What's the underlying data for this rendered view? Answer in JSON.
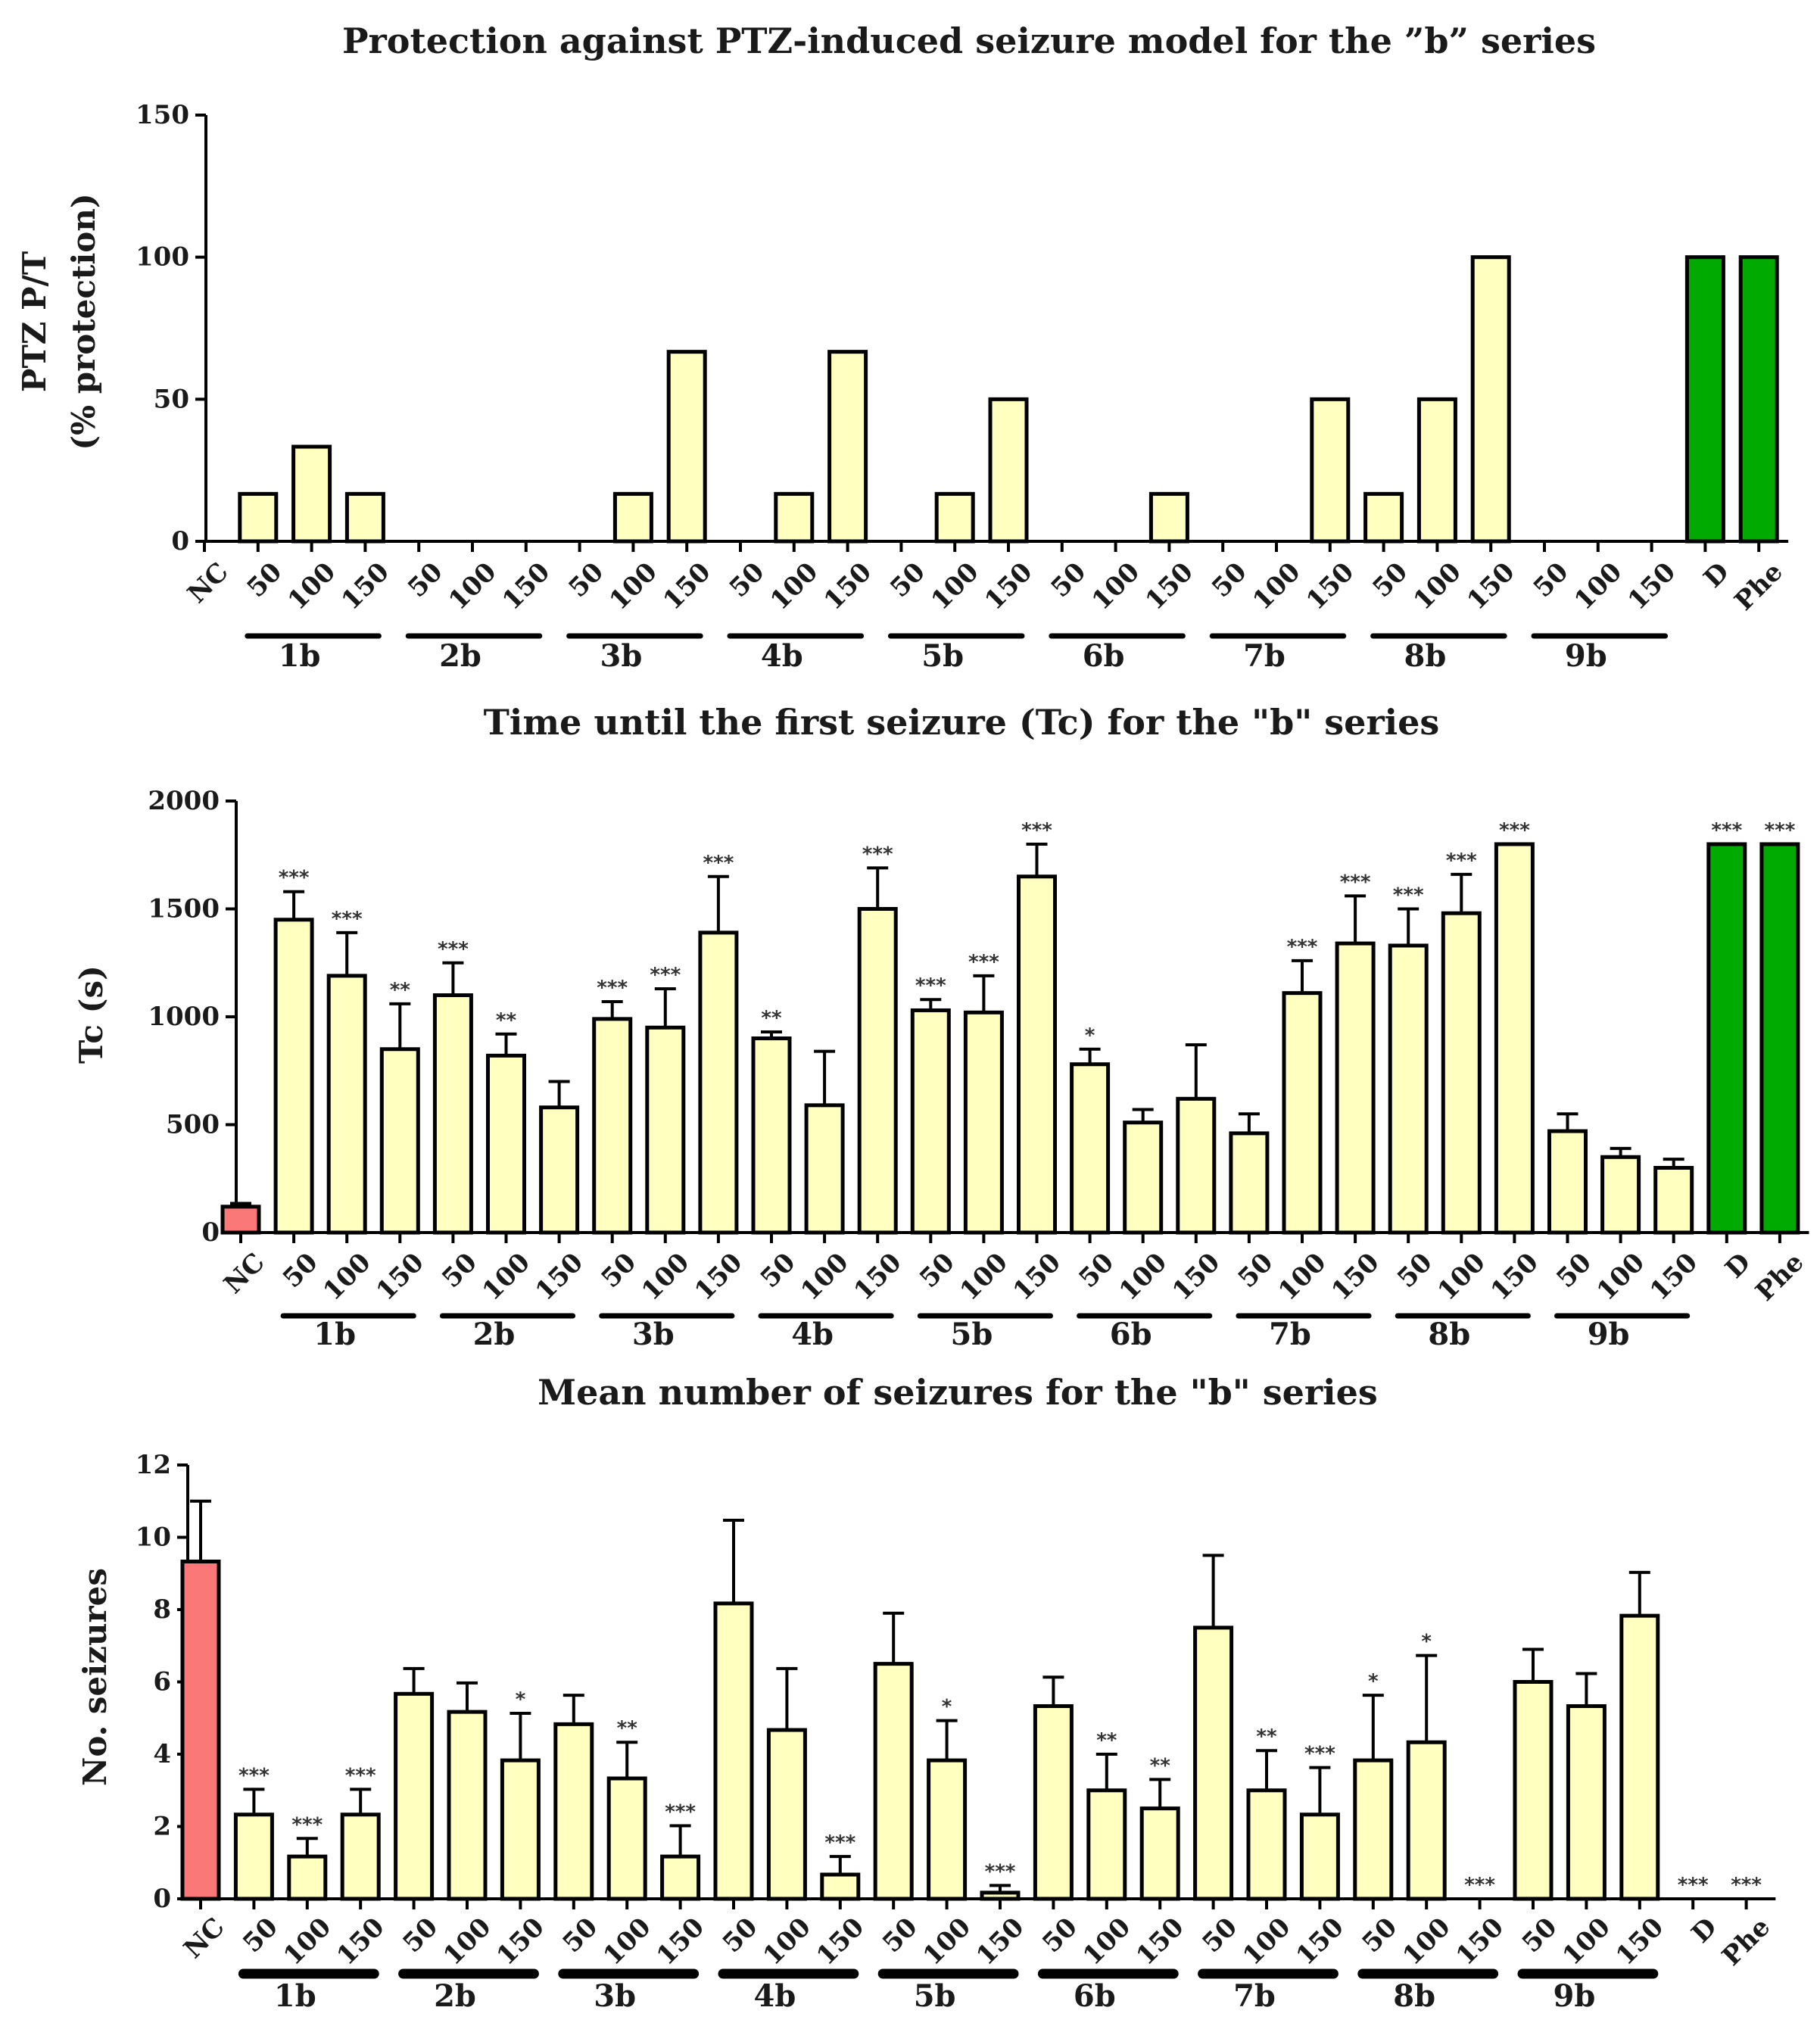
{
  "colors": {
    "yellow": "#FFFFC0",
    "green": "#00AA00",
    "red": "#FA7878",
    "stroke": "#000000"
  },
  "chart_data": [
    {
      "type": "bar",
      "title": "Protection against PTZ-induced seizure model for the ”b” series",
      "ylabel_line1": "PTZ P/T",
      "ylabel_line2": "(% protection)",
      "ylim": [
        0,
        150
      ],
      "yticks": [
        "0",
        "50",
        "100",
        "150"
      ],
      "categories": [
        "NC",
        "50",
        "100",
        "150",
        "50",
        "100",
        "150",
        "50",
        "100",
        "150",
        "50",
        "100",
        "150",
        "50",
        "100",
        "150",
        "50",
        "100",
        "150",
        "50",
        "100",
        "150",
        "50",
        "100",
        "150",
        "50",
        "100",
        "150",
        "D",
        "Phe"
      ],
      "values": [
        0,
        16.7,
        33.3,
        16.7,
        0,
        0,
        0,
        0,
        16.7,
        66.7,
        0,
        16.7,
        66.7,
        0,
        16.7,
        50,
        0,
        0,
        16.7,
        0,
        0,
        50,
        16.7,
        50,
        100,
        0,
        0,
        0,
        100,
        100
      ],
      "errors": null,
      "significance": null,
      "colors": [
        "yellow",
        "yellow",
        "yellow",
        "yellow",
        "yellow",
        "yellow",
        "yellow",
        "yellow",
        "yellow",
        "yellow",
        "yellow",
        "yellow",
        "yellow",
        "yellow",
        "yellow",
        "yellow",
        "yellow",
        "yellow",
        "yellow",
        "yellow",
        "yellow",
        "yellow",
        "yellow",
        "yellow",
        "yellow",
        "yellow",
        "yellow",
        "yellow",
        "green",
        "green"
      ],
      "groups": [
        "1b",
        "2b",
        "3b",
        "4b",
        "5b",
        "6b",
        "7b",
        "8b",
        "9b"
      ]
    },
    {
      "type": "bar",
      "title": "Time until the first seizure (Tc) for the \"b\" series",
      "ylabel_line1": "Tc (s)",
      "ylabel_line2": "",
      "ylim": [
        0,
        2000
      ],
      "yticks": [
        "0",
        "500",
        "1000",
        "1500",
        "2000"
      ],
      "categories": [
        "NC",
        "50",
        "100",
        "150",
        "50",
        "100",
        "150",
        "50",
        "100",
        "150",
        "50",
        "100",
        "150",
        "50",
        "100",
        "150",
        "50",
        "100",
        "150",
        "50",
        "100",
        "150",
        "50",
        "100",
        "150",
        "50",
        "100",
        "150",
        "D",
        "Phe"
      ],
      "values": [
        120,
        1450,
        1190,
        850,
        1100,
        820,
        580,
        990,
        950,
        1390,
        900,
        590,
        1500,
        1030,
        1020,
        1650,
        780,
        510,
        620,
        460,
        1110,
        1340,
        1330,
        1480,
        1800,
        470,
        350,
        300,
        1800,
        1800
      ],
      "errors": [
        15,
        130,
        200,
        210,
        150,
        100,
        120,
        80,
        180,
        260,
        30,
        250,
        190,
        50,
        170,
        150,
        70,
        60,
        250,
        90,
        150,
        220,
        170,
        180,
        0,
        80,
        40,
        40,
        0,
        0
      ],
      "significance": [
        "",
        "***",
        "***",
        "**",
        "***",
        "**",
        "",
        "***",
        "***",
        "***",
        "**",
        "",
        "***",
        "***",
        "***",
        "***",
        "*",
        "",
        "",
        "",
        "***",
        "***",
        "***",
        "***",
        "***",
        "",
        "",
        "",
        "***",
        "***"
      ],
      "colors": [
        "red",
        "yellow",
        "yellow",
        "yellow",
        "yellow",
        "yellow",
        "yellow",
        "yellow",
        "yellow",
        "yellow",
        "yellow",
        "yellow",
        "yellow",
        "yellow",
        "yellow",
        "yellow",
        "yellow",
        "yellow",
        "yellow",
        "yellow",
        "yellow",
        "yellow",
        "yellow",
        "yellow",
        "yellow",
        "yellow",
        "yellow",
        "yellow",
        "green",
        "green"
      ],
      "groups": [
        "1b",
        "2b",
        "3b",
        "4b",
        "5b",
        "6b",
        "7b",
        "8b",
        "9b"
      ]
    },
    {
      "type": "bar",
      "title": "Mean number of seizures for the \"b\" series",
      "ylabel_line1": "No. seizures",
      "ylabel_line2": "",
      "ylim": [
        0,
        12
      ],
      "yticks": [
        "0",
        "2",
        "4",
        "6",
        "8",
        "10",
        "12"
      ],
      "categories": [
        "NC",
        "50",
        "100",
        "150",
        "50",
        "100",
        "150",
        "50",
        "100",
        "150",
        "50",
        "100",
        "150",
        "50",
        "100",
        "150",
        "50",
        "100",
        "150",
        "50",
        "100",
        "150",
        "50",
        "100",
        "150",
        "50",
        "100",
        "150",
        "D",
        "Phe"
      ],
      "values": [
        9.33,
        2.33,
        1.17,
        2.33,
        5.67,
        5.17,
        3.83,
        4.83,
        3.33,
        1.17,
        8.17,
        4.67,
        0.67,
        6.5,
        3.83,
        0.17,
        5.33,
        3.0,
        2.5,
        7.5,
        3.0,
        2.33,
        3.83,
        4.33,
        0,
        6.0,
        5.33,
        7.83,
        0,
        0
      ],
      "errors": [
        1.67,
        0.7,
        0.5,
        0.7,
        0.7,
        0.8,
        1.3,
        0.8,
        1.0,
        0.85,
        2.3,
        1.7,
        0.5,
        1.4,
        1.1,
        0.2,
        0.8,
        1.0,
        0.8,
        2.0,
        1.1,
        1.3,
        1.8,
        2.4,
        0,
        0.9,
        0.9,
        1.2,
        0,
        0
      ],
      "significance": [
        "",
        "***",
        "***",
        "***",
        "",
        "",
        "*",
        "",
        "**",
        "***",
        "",
        "",
        "***",
        "",
        "*",
        "***",
        "",
        "**",
        "**",
        "",
        "**",
        "***",
        "*",
        "*",
        "***",
        "",
        "",
        "",
        "***",
        "***"
      ],
      "colors": [
        "red",
        "yellow",
        "yellow",
        "yellow",
        "yellow",
        "yellow",
        "yellow",
        "yellow",
        "yellow",
        "yellow",
        "yellow",
        "yellow",
        "yellow",
        "yellow",
        "yellow",
        "yellow",
        "yellow",
        "yellow",
        "yellow",
        "yellow",
        "yellow",
        "yellow",
        "yellow",
        "yellow",
        "yellow",
        "yellow",
        "yellow",
        "yellow",
        "yellow",
        "yellow"
      ],
      "groups": [
        "1b",
        "2b",
        "3b",
        "4b",
        "5b",
        "6b",
        "7b",
        "8b",
        "9b"
      ]
    }
  ]
}
